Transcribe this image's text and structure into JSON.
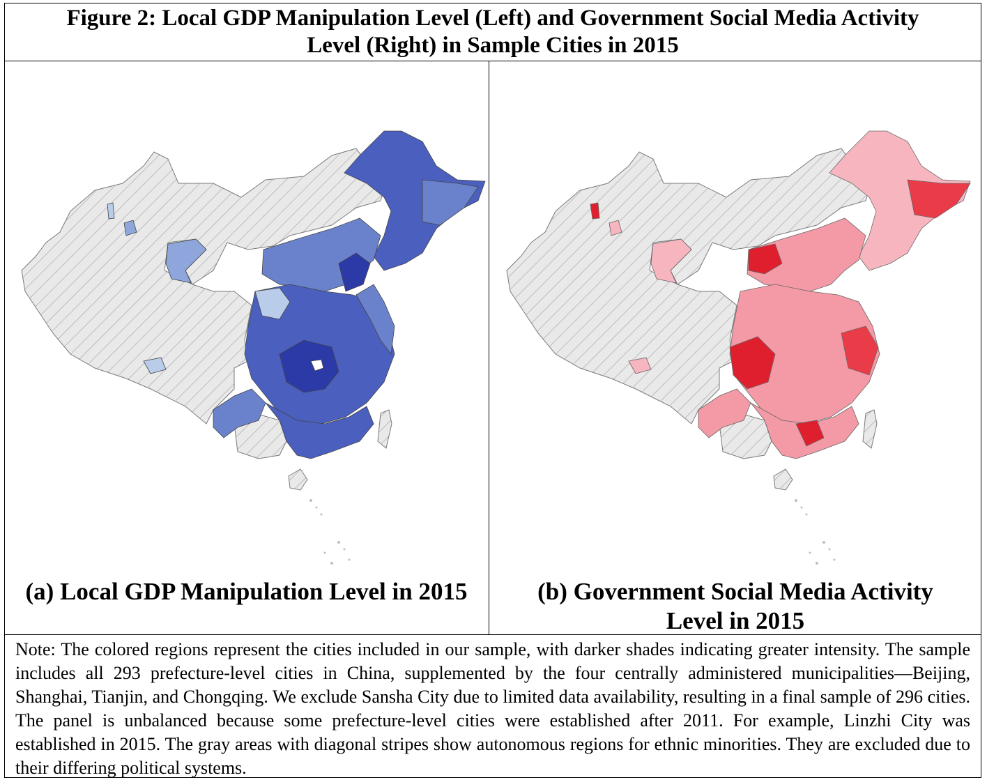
{
  "figure": {
    "title_line1": "Figure 2: Local GDP Manipulation Level (Left) and Government Social Media Activity",
    "title_line2": "Level (Right) in Sample Cities in 2015"
  },
  "panels": {
    "left": {
      "caption": "(a) Local GDP Manipulation Level in 2015",
      "palette": [
        "#b9cdea",
        "#8ea6dc",
        "#6a82cc",
        "#4a5fbe",
        "#2b3aa7"
      ],
      "excluded_color": "#e6e6e6"
    },
    "right": {
      "caption_line1": "(b) Government Social Media Activity",
      "caption_line2": "Level in 2015",
      "palette": [
        "#f7b6bf",
        "#f49aa6",
        "#f0626f",
        "#ea3b48",
        "#e01f2e"
      ],
      "excluded_color": "#e6e6e6"
    }
  },
  "note": "Note: The colored regions represent the cities included in our sample, with darker shades indicating greater intensity. The sample includes all 293 prefecture-level cities in China, supplemented by the four centrally administered municipalities—Beijing, Shanghai, Tianjin, and Chongqing. We exclude Sansha City due to limited data availability, resulting in a final sample of 296 cities. The panel is unbalanced because some prefecture-level cities were established after 2011. For example, Linzhi City was established in 2015. The gray areas with diagonal stripes show autonomous regions for ethnic minorities. They are excluded due to their differing political systems."
}
